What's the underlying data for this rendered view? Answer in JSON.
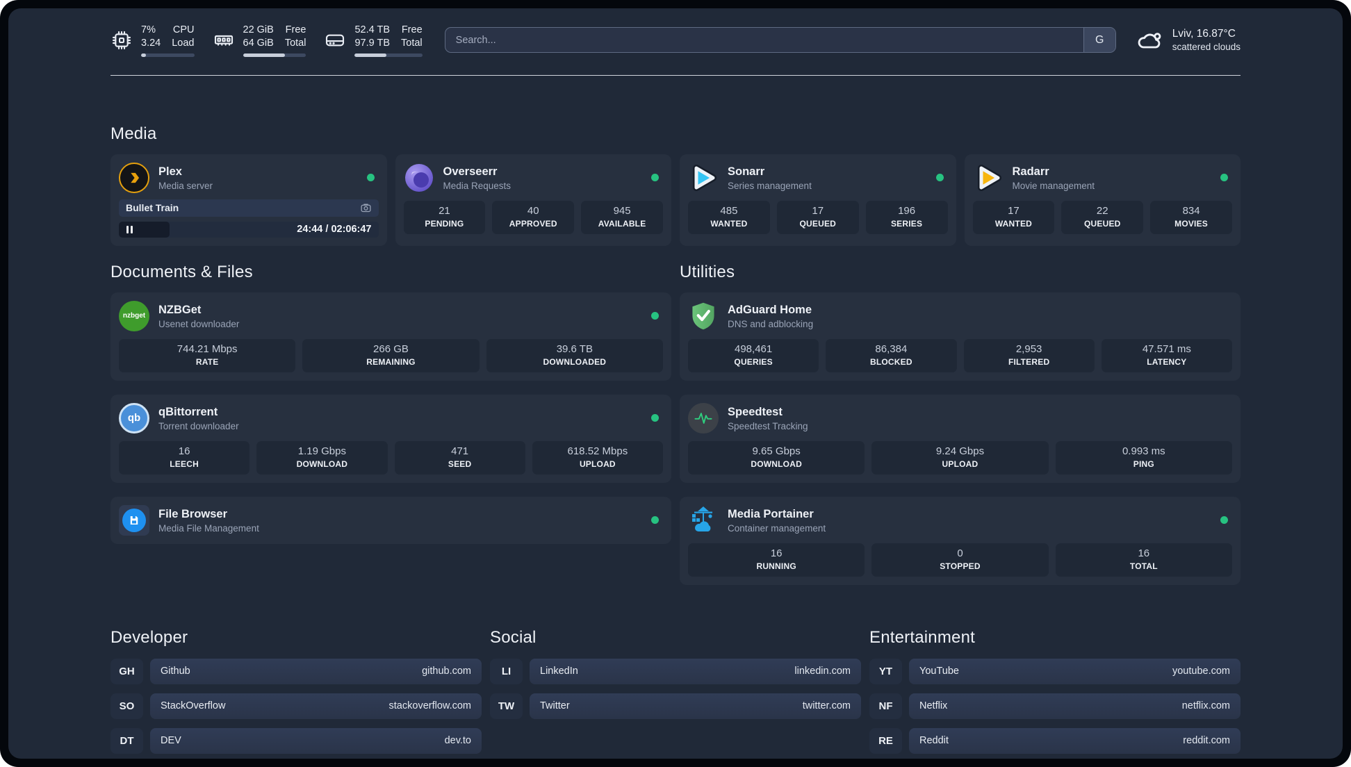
{
  "colors": {
    "status_online": "#27c281",
    "plex_gold": "#e5a00d",
    "sonarr_blue": "#35c5f4",
    "radarr_yellow": "#f7b50e",
    "nzbget_green": "#3f9c2c",
    "adguard_green": "#62b96f",
    "qbittorrent_blue": "#4a90d9",
    "portainer_blue": "#27a5e8",
    "filebrowser_blue": "#1e90f0",
    "speedtest_pulse_green": "#2fd07f"
  },
  "header": {
    "stats": {
      "cpu": {
        "value1": "7%",
        "label1": "CPU",
        "value2": "3.24",
        "label2": "Load",
        "progress": "9%"
      },
      "memory": {
        "value1": "22 GiB",
        "label1": "Free",
        "value2": "64 GiB",
        "label2": "Total",
        "progress": "66%"
      },
      "disk": {
        "value1": "52.4 TB",
        "label1": "Free",
        "value2": "97.9 TB",
        "label2": "Total",
        "progress": "47%"
      }
    },
    "search": {
      "placeholder": "Search...",
      "button_label": "G"
    },
    "weather": {
      "location": "Lviv, 16.87°C",
      "condition": "scattered clouds"
    }
  },
  "sections": {
    "media": {
      "title": "Media",
      "plex": {
        "title": "Plex",
        "subtitle": "Media server",
        "status": "online",
        "now_playing": "Bullet Train",
        "time_display": "24:44 / 02:06:47",
        "progress": "19.5%"
      },
      "overseerr": {
        "title": "Overseerr",
        "subtitle": "Media Requests",
        "status": "online",
        "stats": [
          {
            "value": "21",
            "label": "PENDING"
          },
          {
            "value": "40",
            "label": "APPROVED"
          },
          {
            "value": "945",
            "label": "AVAILABLE"
          }
        ]
      },
      "sonarr": {
        "title": "Sonarr",
        "subtitle": "Series management",
        "status": "online",
        "stats": [
          {
            "value": "485",
            "label": "WANTED"
          },
          {
            "value": "17",
            "label": "QUEUED"
          },
          {
            "value": "196",
            "label": "SERIES"
          }
        ]
      },
      "radarr": {
        "title": "Radarr",
        "subtitle": "Movie management",
        "status": "online",
        "stats": [
          {
            "value": "17",
            "label": "WANTED"
          },
          {
            "value": "22",
            "label": "QUEUED"
          },
          {
            "value": "834",
            "label": "MOVIES"
          }
        ]
      }
    },
    "documents": {
      "title": "Documents & Files",
      "nzbget": {
        "title": "NZBGet",
        "subtitle": "Usenet downloader",
        "status": "online",
        "logo_text": "nzbget",
        "stats": [
          {
            "value": "744.21 Mbps",
            "label": "RATE"
          },
          {
            "value": "266 GB",
            "label": "REMAINING"
          },
          {
            "value": "39.6 TB",
            "label": "DOWNLOADED"
          }
        ]
      },
      "qbittorrent": {
        "title": "qBittorrent",
        "subtitle": "Torrent downloader",
        "status": "online",
        "logo_text": "qb",
        "stats": [
          {
            "value": "16",
            "label": "LEECH"
          },
          {
            "value": "1.19 Gbps",
            "label": "DOWNLOAD"
          },
          {
            "value": "471",
            "label": "SEED"
          },
          {
            "value": "618.52 Mbps",
            "label": "UPLOAD"
          }
        ]
      },
      "filebrowser": {
        "title": "File Browser",
        "subtitle": "Media File Management",
        "status": "online"
      }
    },
    "utilities": {
      "title": "Utilities",
      "adguard": {
        "title": "AdGuard Home",
        "subtitle": "DNS and adblocking",
        "stats": [
          {
            "value": "498,461",
            "label": "QUERIES"
          },
          {
            "value": "86,384",
            "label": "BLOCKED"
          },
          {
            "value": "2,953",
            "label": "FILTERED"
          },
          {
            "value": "47.571 ms",
            "label": "LATENCY"
          }
        ]
      },
      "speedtest": {
        "title": "Speedtest",
        "subtitle": "Speedtest Tracking",
        "stats": [
          {
            "value": "9.65 Gbps",
            "label": "DOWNLOAD"
          },
          {
            "value": "9.24 Gbps",
            "label": "UPLOAD"
          },
          {
            "value": "0.993 ms",
            "label": "PING"
          }
        ]
      },
      "portainer": {
        "title": "Media Portainer",
        "subtitle": "Container management",
        "status": "online",
        "stats": [
          {
            "value": "16",
            "label": "RUNNING"
          },
          {
            "value": "0",
            "label": "STOPPED"
          },
          {
            "value": "16",
            "label": "TOTAL"
          }
        ]
      }
    },
    "developer": {
      "title": "Developer",
      "links": [
        {
          "abbr": "GH",
          "name": "Github",
          "url": "github.com"
        },
        {
          "abbr": "SO",
          "name": "StackOverflow",
          "url": "stackoverflow.com"
        },
        {
          "abbr": "DT",
          "name": "DEV",
          "url": "dev.to"
        }
      ]
    },
    "social": {
      "title": "Social",
      "links": [
        {
          "abbr": "LI",
          "name": "LinkedIn",
          "url": "linkedin.com"
        },
        {
          "abbr": "TW",
          "name": "Twitter",
          "url": "twitter.com"
        }
      ]
    },
    "entertainment": {
      "title": "Entertainment",
      "links": [
        {
          "abbr": "YT",
          "name": "YouTube",
          "url": "youtube.com"
        },
        {
          "abbr": "NF",
          "name": "Netflix",
          "url": "netflix.com"
        },
        {
          "abbr": "RE",
          "name": "Reddit",
          "url": "reddit.com"
        }
      ]
    }
  }
}
